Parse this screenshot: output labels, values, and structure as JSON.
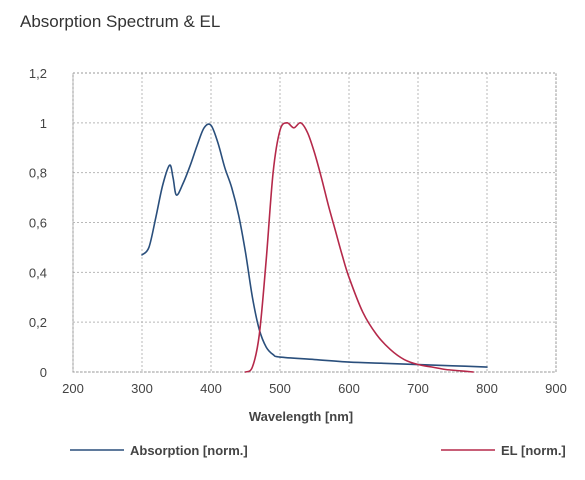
{
  "chart_data": {
    "type": "line",
    "title": "Absorption Spectrum & EL",
    "xlabel": "Wavelength [nm]",
    "ylabel": "",
    "xlim": [
      200,
      900
    ],
    "ylim": [
      0,
      1.2
    ],
    "x_ticks": [
      200,
      300,
      400,
      500,
      600,
      700,
      800,
      900
    ],
    "x_tick_labels": [
      "200",
      "300",
      "400",
      "500",
      "600",
      "700",
      "800",
      "900"
    ],
    "y_ticks": [
      0,
      0.2,
      0.4,
      0.6,
      0.8,
      1.0,
      1.2
    ],
    "y_tick_labels": [
      "0",
      "0,2",
      "0,4",
      "0,6",
      "0,8",
      "1",
      "1,2"
    ],
    "grid": true,
    "legend_position": "bottom",
    "series": [
      {
        "name": "Absorption [norm.]",
        "color": "#2a4f7c",
        "x": [
          300,
          310,
          320,
          330,
          340,
          345,
          350,
          360,
          370,
          380,
          390,
          400,
          410,
          420,
          430,
          440,
          450,
          460,
          470,
          480,
          490,
          500,
          550,
          600,
          650,
          700,
          750,
          800
        ],
        "y": [
          0.47,
          0.5,
          0.62,
          0.75,
          0.83,
          0.78,
          0.71,
          0.76,
          0.83,
          0.91,
          0.98,
          0.99,
          0.92,
          0.82,
          0.74,
          0.63,
          0.48,
          0.3,
          0.17,
          0.1,
          0.07,
          0.06,
          0.05,
          0.04,
          0.035,
          0.03,
          0.025,
          0.02
        ]
      },
      {
        "name": "EL [norm.]",
        "color": "#b5294a",
        "x": [
          450,
          460,
          470,
          480,
          490,
          500,
          510,
          520,
          530,
          540,
          550,
          560,
          570,
          580,
          590,
          600,
          620,
          640,
          660,
          680,
          700,
          720,
          740,
          760,
          780
        ],
        "y": [
          0.0,
          0.02,
          0.15,
          0.45,
          0.8,
          0.97,
          1.0,
          0.98,
          1.0,
          0.96,
          0.88,
          0.78,
          0.67,
          0.57,
          0.47,
          0.38,
          0.24,
          0.15,
          0.09,
          0.05,
          0.03,
          0.02,
          0.01,
          0.005,
          0.0
        ]
      }
    ]
  }
}
